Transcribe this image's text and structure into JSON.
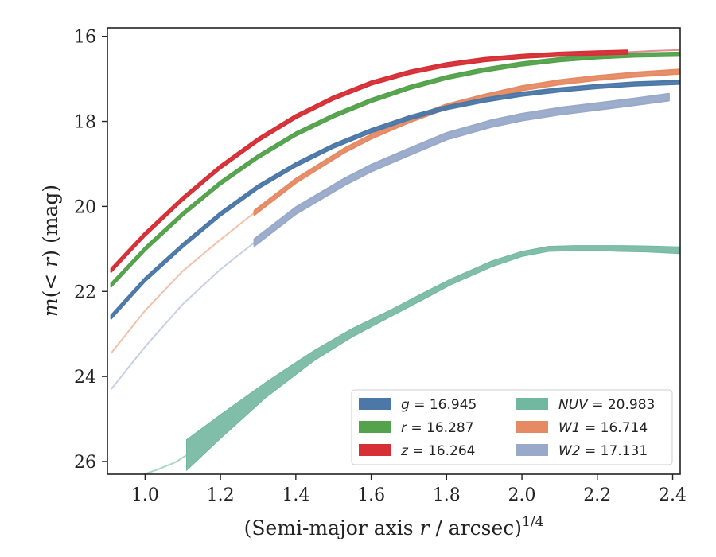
{
  "chart_data": {
    "type": "line",
    "xlabel": "(Semi-major axis r / arcsec)",
    "xlabel_italic": "r",
    "xlabel_sup": "1/4",
    "ylabel": "m(< r) (mag)",
    "xlim": [
      0.9,
      2.42
    ],
    "ylim": [
      26.3,
      15.8
    ],
    "y_inverted": true,
    "xticks": [
      "1.0",
      "1.2",
      "1.4",
      "1.6",
      "1.8",
      "2.0",
      "2.2",
      "2.4"
    ],
    "yticks": [
      "16",
      "18",
      "20",
      "22",
      "24",
      "26"
    ],
    "grid": false,
    "legend_position": "lower-right",
    "series": [
      {
        "name": "g",
        "legend_value": "16.945",
        "color": "#4c78a8",
        "x": [
          0.91,
          1.0,
          1.1,
          1.2,
          1.3,
          1.4,
          1.5,
          1.6,
          1.7,
          1.8,
          1.9,
          2.0,
          2.1,
          2.2,
          2.3,
          2.42
        ],
        "y": [
          22.6,
          21.72,
          20.92,
          20.18,
          19.54,
          19.02,
          18.58,
          18.22,
          17.92,
          17.68,
          17.5,
          17.36,
          17.26,
          17.18,
          17.12,
          17.08
        ],
        "halfwidth": 0.04
      },
      {
        "name": "r",
        "legend_value": "16.287",
        "color": "#54a24b",
        "x": [
          0.91,
          1.0,
          1.1,
          1.2,
          1.3,
          1.4,
          1.5,
          1.6,
          1.7,
          1.8,
          1.9,
          2.0,
          2.1,
          2.2,
          2.3,
          2.42
        ],
        "y": [
          21.85,
          21.0,
          20.18,
          19.45,
          18.83,
          18.3,
          17.87,
          17.51,
          17.21,
          16.97,
          16.79,
          16.65,
          16.55,
          16.48,
          16.44,
          16.42
        ],
        "halfwidth": 0.04
      },
      {
        "name": "z",
        "legend_value": "16.264",
        "color": "#d62f36",
        "x": [
          0.91,
          1.0,
          1.1,
          1.2,
          1.3,
          1.4,
          1.5,
          1.6,
          1.7,
          1.8,
          1.9,
          2.0,
          2.1,
          2.2,
          2.28
        ],
        "y": [
          21.5,
          20.65,
          19.82,
          19.07,
          18.43,
          17.89,
          17.45,
          17.1,
          16.85,
          16.67,
          16.55,
          16.47,
          16.42,
          16.39,
          16.37
        ],
        "halfwidth": 0.04,
        "extension": {
          "x": [
            2.28,
            2.35,
            2.42
          ],
          "y": [
            16.37,
            16.34,
            16.32
          ],
          "color": "#e08c91"
        }
      },
      {
        "name": "NUV",
        "legend_value": "20.983",
        "color": "#72b7a0",
        "x": [
          1.11,
          1.2,
          1.32,
          1.45,
          1.55,
          1.65,
          1.73,
          1.81,
          1.92,
          2.0,
          2.07,
          2.14,
          2.2,
          2.26,
          2.33,
          2.42
        ],
        "y": [
          25.85,
          25.18,
          24.32,
          23.5,
          22.97,
          22.52,
          22.15,
          21.78,
          21.35,
          21.12,
          21.0,
          20.98,
          20.98,
          20.99,
          21.0,
          21.03
        ],
        "halfwidth": [
          0.36,
          0.28,
          0.18,
          0.12,
          0.1,
          0.08,
          0.08,
          0.07,
          0.07,
          0.06,
          0.06,
          0.06,
          0.06,
          0.07,
          0.07,
          0.08
        ],
        "extension": {
          "x": [
            0.98,
            1.03,
            1.08,
            1.11
          ],
          "y": [
            26.35,
            26.2,
            26.02,
            25.85
          ],
          "color": "#a8d6c5"
        }
      },
      {
        "name": "W1",
        "legend_value": "16.714",
        "color": "#e68a64",
        "x": [
          1.29,
          1.4,
          1.53,
          1.6,
          1.7,
          1.8,
          1.9,
          2.0,
          2.1,
          2.2,
          2.3,
          2.42
        ],
        "y": [
          20.15,
          19.4,
          18.68,
          18.36,
          17.98,
          17.65,
          17.42,
          17.22,
          17.08,
          16.98,
          16.9,
          16.83
        ],
        "halfwidth": 0.05,
        "extension": {
          "x": [
            0.91,
            1.0,
            1.1,
            1.2,
            1.29
          ],
          "y": [
            23.45,
            22.45,
            21.52,
            20.78,
            20.15
          ],
          "color": "#f2c0a8"
        }
      },
      {
        "name": "W2",
        "legend_value": "17.131",
        "color": "#98a9c9",
        "x": [
          1.29,
          1.4,
          1.53,
          1.6,
          1.7,
          1.8,
          1.92,
          2.0,
          2.1,
          2.2,
          2.3,
          2.39
        ],
        "y": [
          20.85,
          20.1,
          19.42,
          19.1,
          18.72,
          18.35,
          18.05,
          17.9,
          17.76,
          17.65,
          17.54,
          17.43
        ],
        "halfwidth": 0.08,
        "extension": {
          "x": [
            0.91,
            1.0,
            1.1,
            1.2,
            1.29
          ],
          "y": [
            24.3,
            23.3,
            22.3,
            21.48,
            20.85
          ],
          "color": "#c7d0e2"
        }
      }
    ]
  }
}
